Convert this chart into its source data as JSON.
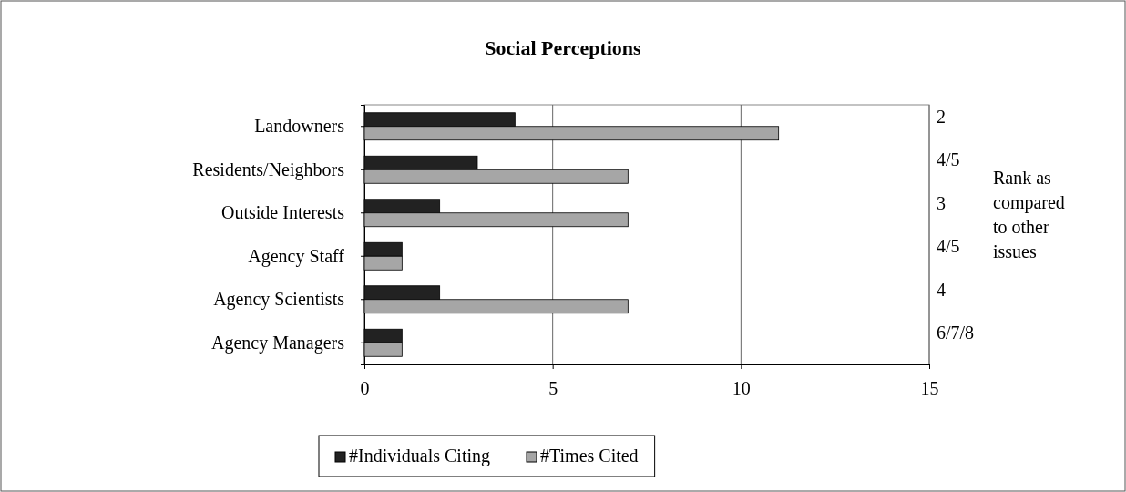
{
  "chart_data": {
    "type": "bar",
    "orientation": "horizontal",
    "title": "Social Perceptions",
    "categories": [
      "Landowners",
      "Residents/Neighbors",
      "Outside Interests",
      "Agency Staff",
      "Agency Scientists",
      "Agency Managers"
    ],
    "series": [
      {
        "name": "#Individuals Citing",
        "color": "#222222",
        "values": [
          4,
          3,
          2,
          1,
          2,
          1
        ]
      },
      {
        "name": "#Times Cited",
        "color": "#a6a6a6",
        "values": [
          11,
          7,
          7,
          1,
          7,
          1
        ]
      }
    ],
    "xlim": [
      0,
      15
    ],
    "xticks": [
      0,
      5,
      10,
      15
    ],
    "grid": "x",
    "legend": "bottom",
    "annotations": [
      "2",
      "4/5",
      "3",
      "4/5",
      "4",
      "6/7/8",
      "Rank as compared to other issues"
    ]
  }
}
